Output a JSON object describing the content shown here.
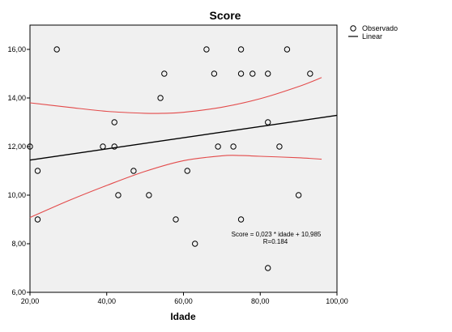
{
  "chart_data": {
    "type": "scatter",
    "title": "Score",
    "xlabel": "Idade",
    "ylabel": "",
    "xlim": [
      20,
      100
    ],
    "ylim": [
      6,
      17
    ],
    "xticks": [
      20,
      40,
      60,
      80,
      100
    ],
    "xtick_labels": [
      "20,00",
      "40,00",
      "60,00",
      "80,00",
      "100,00"
    ],
    "yticks": [
      6,
      8,
      10,
      12,
      14,
      16
    ],
    "ytick_labels": [
      "6,00",
      "8,00",
      "10,00",
      "12,00",
      "14,00",
      "16,00"
    ],
    "grid": false,
    "legend_position": "top-right, outside plot",
    "plot_background": "#f0f0f0",
    "series": [
      {
        "name": "Observado",
        "kind": "scatter",
        "marker": "open-circle",
        "color": "#000000",
        "points": [
          {
            "x": 20,
            "y": 12
          },
          {
            "x": 22,
            "y": 11
          },
          {
            "x": 22,
            "y": 9
          },
          {
            "x": 27,
            "y": 16
          },
          {
            "x": 39,
            "y": 12
          },
          {
            "x": 42,
            "y": 13
          },
          {
            "x": 42,
            "y": 12
          },
          {
            "x": 43,
            "y": 10
          },
          {
            "x": 47,
            "y": 11
          },
          {
            "x": 51,
            "y": 10
          },
          {
            "x": 54,
            "y": 14
          },
          {
            "x": 55,
            "y": 15
          },
          {
            "x": 58,
            "y": 9
          },
          {
            "x": 61,
            "y": 11
          },
          {
            "x": 63,
            "y": 8
          },
          {
            "x": 66,
            "y": 16
          },
          {
            "x": 68,
            "y": 15
          },
          {
            "x": 69,
            "y": 12
          },
          {
            "x": 73,
            "y": 12
          },
          {
            "x": 75,
            "y": 16
          },
          {
            "x": 75,
            "y": 15
          },
          {
            "x": 75,
            "y": 9
          },
          {
            "x": 78,
            "y": 15
          },
          {
            "x": 82,
            "y": 15
          },
          {
            "x": 82,
            "y": 13
          },
          {
            "x": 82,
            "y": 7
          },
          {
            "x": 85,
            "y": 12
          },
          {
            "x": 87,
            "y": 16
          },
          {
            "x": 90,
            "y": 10
          },
          {
            "x": 93,
            "y": 15
          }
        ]
      },
      {
        "name": "Linear",
        "kind": "line",
        "color": "#000000",
        "x": [
          20,
          102
        ],
        "y": [
          11.445,
          13.331
        ]
      }
    ],
    "confidence_band": {
      "color": "#e34a4a",
      "upper": {
        "x": [
          20,
          30,
          40,
          50,
          55,
          60,
          70,
          80,
          90,
          96
        ],
        "y": [
          13.8,
          13.62,
          13.45,
          13.37,
          13.37,
          13.41,
          13.62,
          13.97,
          14.47,
          14.84
        ]
      },
      "lower": {
        "x": [
          20,
          30,
          40,
          50,
          60,
          70,
          75,
          80,
          90,
          96
        ],
        "y": [
          9.08,
          9.77,
          10.4,
          10.98,
          11.42,
          11.62,
          11.63,
          11.6,
          11.54,
          11.48
        ]
      }
    },
    "annotations": {
      "equation": "Score = 0,023 * idade + 10,985",
      "r_value": "R=0.184"
    }
  }
}
